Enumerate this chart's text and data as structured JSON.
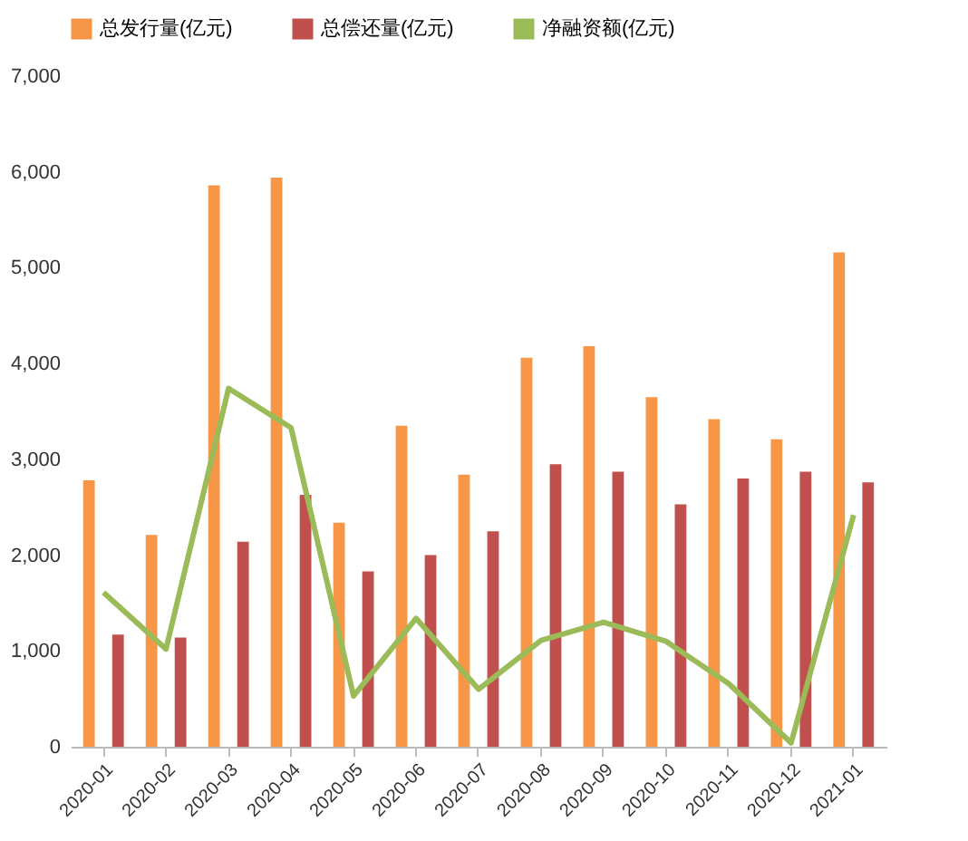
{
  "chart_data": {
    "type": "bar",
    "categories": [
      "2020-01",
      "2020-02",
      "2020-03",
      "2020-04",
      "2020-05",
      "2020-06",
      "2020-07",
      "2020-08",
      "2020-09",
      "2020-10",
      "2020-11",
      "2020-12",
      "2021-01"
    ],
    "series": [
      {
        "name": "总发行量(亿元)",
        "color": "#f79646",
        "values": [
          2780,
          2210,
          5860,
          5940,
          2340,
          3350,
          2840,
          4060,
          4180,
          3650,
          3420,
          3210,
          5160
        ]
      },
      {
        "name": "总偿还量(亿元)",
        "color": "#c0504d",
        "values": [
          1170,
          1140,
          2140,
          2630,
          1830,
          2000,
          2250,
          2950,
          2870,
          2530,
          2800,
          2870,
          2760
        ]
      },
      {
        "name": "净融资额(亿元)",
        "color": "#9bbb59",
        "type": "line",
        "values": [
          1610,
          1020,
          3740,
          3330,
          530,
          1340,
          600,
          1110,
          1300,
          1100,
          660,
          40,
          2420
        ]
      }
    ],
    "ylim": [
      0,
      7000
    ],
    "yticks": [
      0,
      {
        "value": 1000,
        "label": "1,000"
      },
      {
        "value": 2000,
        "label": "2,000"
      },
      {
        "value": 3000,
        "label": "3,000"
      },
      {
        "value": 4000,
        "label": "4,000"
      },
      {
        "value": 5000,
        "label": "5,000"
      },
      {
        "value": 6000,
        "label": "6,000"
      },
      {
        "value": 7000,
        "label": "7,000"
      }
    ],
    "grid": false,
    "legend": "top",
    "marker": "none"
  }
}
